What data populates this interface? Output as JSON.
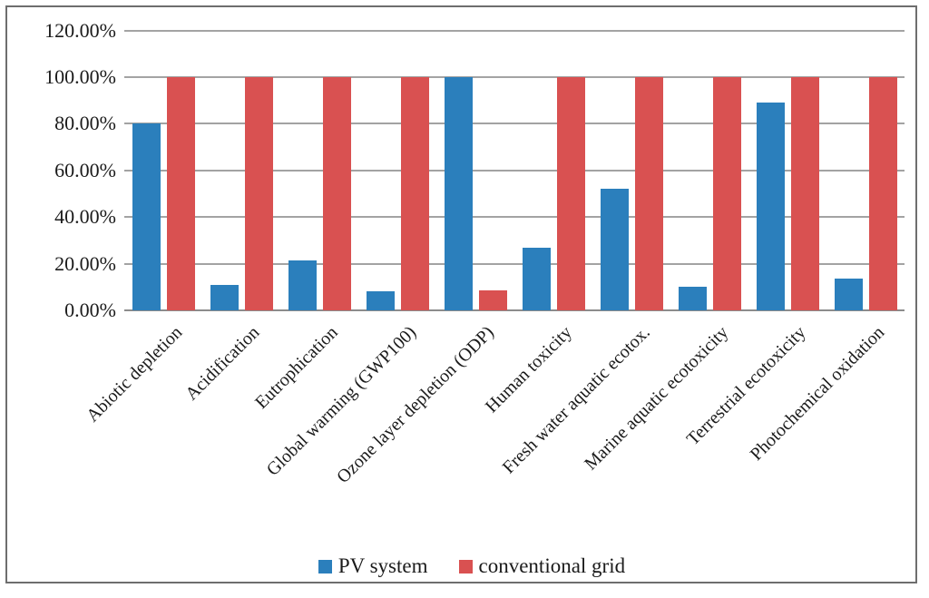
{
  "chart_data": {
    "type": "bar",
    "title": "",
    "xlabel": "",
    "ylabel": "",
    "categories": [
      "Abiotic depletion",
      "Acidification",
      "Eutrophication",
      "Global warming (GWP100)",
      "Ozone layer depletion (ODP)",
      "Human toxicity",
      "Fresh water aquatic ecotox.",
      "Marine aquatic ecotoxicity",
      "Terrestrial ecotoxicity",
      "Photochemical oxidation"
    ],
    "series": [
      {
        "name": "PV system",
        "color": "#2b7fbc",
        "values": [
          80,
          11,
          21.5,
          8,
          100,
          27,
          52,
          10,
          89,
          13.5
        ]
      },
      {
        "name": "conventional grid",
        "color": "#d95151",
        "values": [
          100,
          100,
          100,
          100,
          8.5,
          100,
          100,
          100,
          100,
          100
        ]
      }
    ],
    "ylim": [
      0,
      120
    ],
    "ytick_values": [
      0,
      20,
      40,
      60,
      80,
      100,
      120
    ],
    "ytick_labels": [
      "0.00%",
      "20.00%",
      "40.00%",
      "60.00%",
      "80.00%",
      "100.00%",
      "120.00%"
    ],
    "grid": "horizontal",
    "legend_position": "bottom"
  },
  "colors": {
    "gridline": "#a3a3a3",
    "axis_line": "#8c8c8c",
    "frame_border": "#6e6e6e",
    "text": "#1a1a1a",
    "background": "#ffffff"
  }
}
